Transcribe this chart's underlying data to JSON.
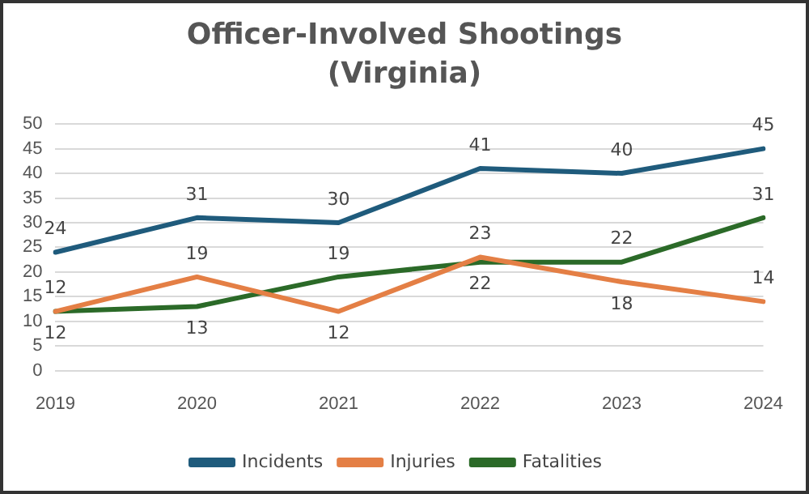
{
  "chart_data": {
    "type": "line",
    "title": "Officer-Involved Shootings (Virginia)",
    "categories": [
      "2019",
      "2020",
      "2021",
      "2022",
      "2023",
      "2024"
    ],
    "series": [
      {
        "name": "Incidents",
        "color": "#1f5b7c",
        "values": [
          24,
          31,
          30,
          41,
          40,
          45
        ]
      },
      {
        "name": "Injuries",
        "color": "#e47f45",
        "values": [
          12,
          19,
          12,
          23,
          18,
          14
        ]
      },
      {
        "name": "Fatalities",
        "color": "#2b6a28",
        "values": [
          12,
          13,
          19,
          22,
          22,
          31
        ]
      }
    ],
    "ylim": [
      0,
      50
    ],
    "yticks": [
      0,
      5,
      10,
      15,
      20,
      25,
      30,
      35,
      40,
      45,
      50
    ],
    "grid": "y",
    "legend": "bottom",
    "data_labels": true,
    "marker": "none",
    "line_style": "solid"
  }
}
